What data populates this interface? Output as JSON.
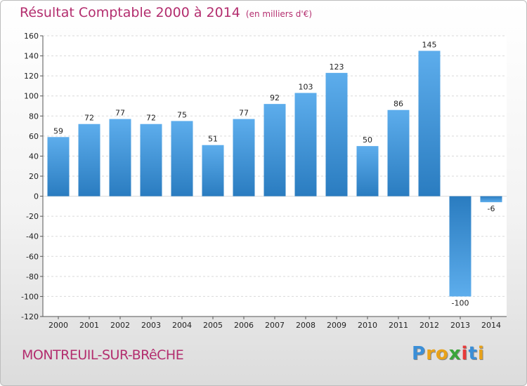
{
  "chart_data": {
    "type": "bar",
    "title": "Résultat Comptable 2000 à 2014",
    "subtitle": "(en milliers d'€)",
    "categories": [
      "2000",
      "2001",
      "2002",
      "2003",
      "2004",
      "2005",
      "2006",
      "2007",
      "2008",
      "2009",
      "2010",
      "2011",
      "2012",
      "2013",
      "2014"
    ],
    "values": [
      59,
      72,
      77,
      72,
      75,
      51,
      77,
      92,
      103,
      123,
      50,
      86,
      145,
      -100,
      -6
    ],
    "ylim": [
      -120,
      160
    ],
    "yticks": [
      160,
      140,
      120,
      100,
      80,
      60,
      40,
      20,
      0,
      -20,
      -40,
      -60,
      -80,
      -100,
      -120
    ],
    "grid": true,
    "xlabel": "",
    "ylabel": ""
  },
  "footer": {
    "place": "MONTREUIL-SUR-BRêCHE",
    "logo_letters": [
      "P",
      "r",
      "o",
      "x",
      "i",
      "t",
      "i"
    ]
  },
  "colors": {
    "title": "#b32d6e",
    "bar_light": "#5dadec",
    "bar_dark": "#2a7cc0",
    "logo": [
      "#3a8fd8",
      "#e8a21a",
      "#e8a21a",
      "#3aa53a",
      "#e83a3a",
      "#3a8fd8",
      "#e8a21a"
    ]
  }
}
